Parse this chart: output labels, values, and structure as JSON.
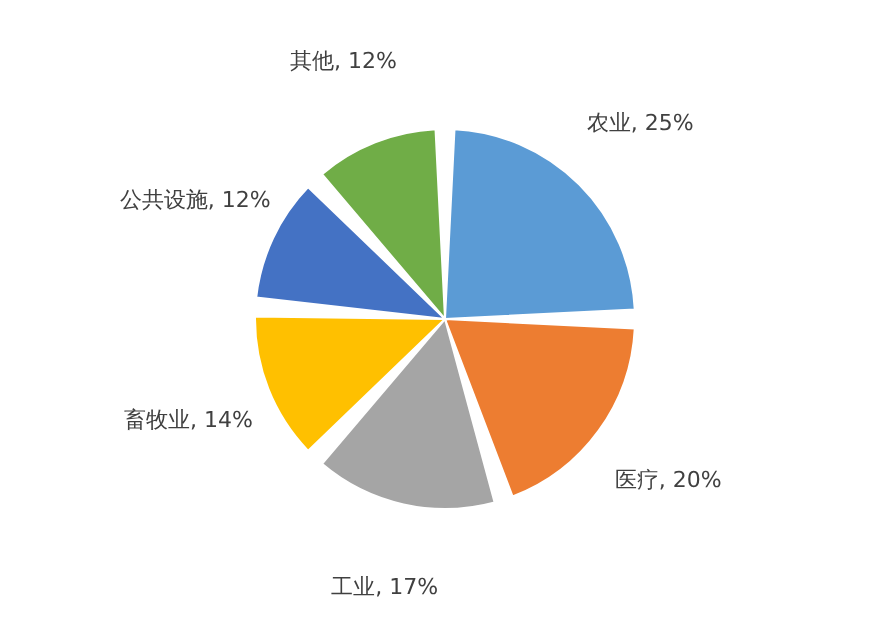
{
  "chart_data": {
    "type": "pie",
    "categories": [
      "农业",
      "医疗",
      "工业",
      "畜牧业",
      "公共设施",
      "其他"
    ],
    "values": [
      25,
      20,
      17,
      14,
      12,
      12
    ],
    "value_labels": [
      "25%",
      "20%",
      "17%",
      "14%",
      "12%",
      "12%"
    ],
    "colors": [
      "#5b9bd5",
      "#ed7d31",
      "#a5a5a5",
      "#ffc000",
      "#4472c4",
      "#70ad47"
    ],
    "legend": false
  }
}
